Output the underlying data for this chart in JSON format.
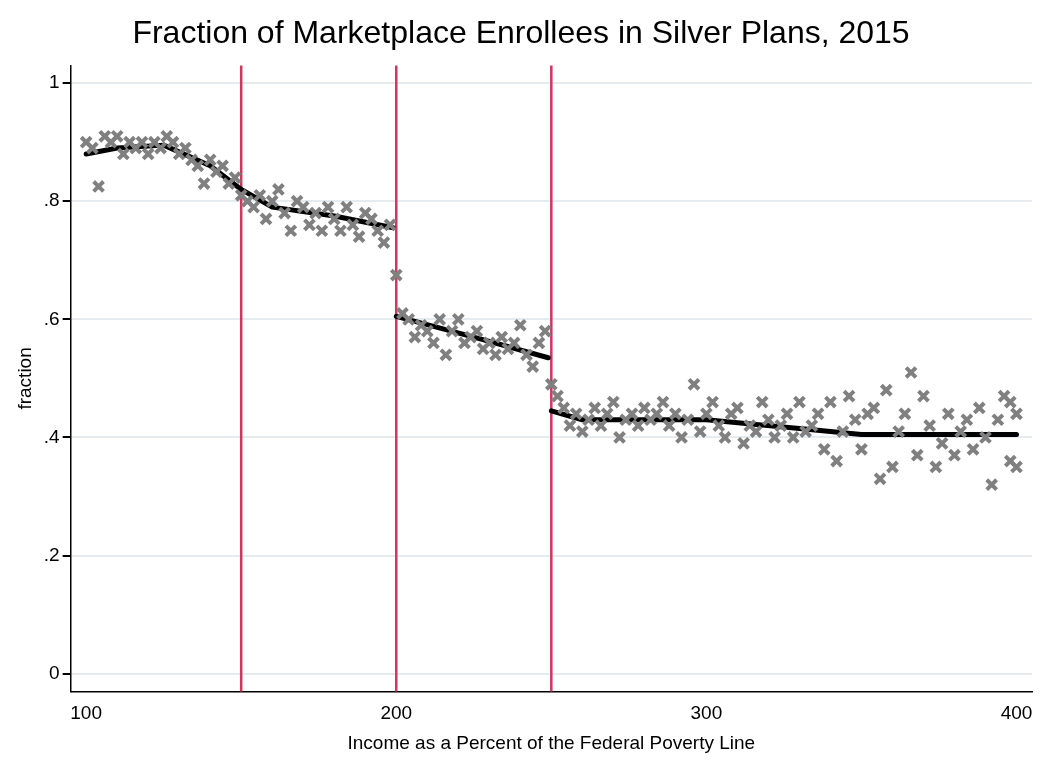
{
  "chart_data": {
    "type": "scatter",
    "title": "Fraction of Marketplace Enrollees in Silver Plans, 2015",
    "xlabel": "Income as a Percent of the Federal Poverty Line",
    "ylabel": "fraction",
    "xlim": [
      95,
      405
    ],
    "xticks": [
      100,
      200,
      300,
      400
    ],
    "ylim": [
      -0.03,
      1.03
    ],
    "yticks": [
      {
        "value": 0,
        "label": "0"
      },
      {
        "value": 0.2,
        "label": ".2"
      },
      {
        "value": 0.4,
        "label": ".4"
      },
      {
        "value": 0.6,
        "label": ".6"
      },
      {
        "value": 0.8,
        "label": ".8"
      },
      {
        "value": 1,
        "label": "1"
      }
    ],
    "grid": "y",
    "legend": false,
    "ref_lines": [
      {
        "axis": "x",
        "value": 150,
        "color": "#d1365e"
      },
      {
        "axis": "x",
        "value": 200,
        "color": "#d1365e"
      },
      {
        "axis": "x",
        "value": 250,
        "color": "#d1365e"
      }
    ],
    "series": [
      {
        "color": "#808080",
        "marker": "cross",
        "x": [
          100,
          102,
          104,
          106,
          108,
          110,
          112,
          114,
          116,
          118,
          120,
          122,
          124,
          126,
          128,
          130,
          132,
          134,
          136,
          138,
          140,
          142,
          144,
          146,
          148,
          150,
          152,
          154,
          156,
          158,
          160,
          162,
          164,
          166,
          168,
          170,
          172,
          174,
          176,
          178,
          180,
          182,
          184,
          186,
          188,
          190,
          192,
          194,
          196,
          198,
          200,
          202,
          204,
          206,
          208,
          210,
          212,
          214,
          216,
          218,
          220,
          222,
          224,
          226,
          228,
          230,
          232,
          234,
          236,
          238,
          240,
          242,
          244,
          246,
          248,
          250,
          252,
          254,
          256,
          258,
          260,
          262,
          264,
          266,
          268,
          270,
          272,
          274,
          276,
          278,
          280,
          282,
          284,
          286,
          288,
          290,
          292,
          294,
          296,
          298,
          300,
          302,
          304,
          306,
          308,
          310,
          312,
          314,
          316,
          318,
          320,
          322,
          324,
          326,
          328,
          330,
          332,
          334,
          336,
          338,
          340,
          342,
          344,
          346,
          348,
          350,
          352,
          354,
          356,
          358,
          360,
          362,
          364,
          366,
          368,
          370,
          372,
          374,
          376,
          378,
          380,
          382,
          384,
          386,
          388,
          390,
          392,
          394,
          396,
          398,
          400,
          398,
          400
        ],
        "values": [
          0.9,
          0.89,
          0.825,
          0.91,
          0.9,
          0.91,
          0.88,
          0.9,
          0.89,
          0.9,
          0.88,
          0.9,
          0.89,
          0.91,
          0.9,
          0.88,
          0.89,
          0.87,
          0.86,
          0.83,
          0.87,
          0.85,
          0.86,
          0.83,
          0.84,
          0.81,
          0.8,
          0.79,
          0.81,
          0.77,
          0.8,
          0.82,
          0.78,
          0.75,
          0.8,
          0.79,
          0.76,
          0.78,
          0.75,
          0.79,
          0.77,
          0.75,
          0.79,
          0.76,
          0.74,
          0.78,
          0.77,
          0.75,
          0.73,
          0.76,
          0.675,
          0.61,
          0.6,
          0.57,
          0.59,
          0.58,
          0.56,
          0.6,
          0.54,
          0.58,
          0.6,
          0.56,
          0.57,
          0.58,
          0.55,
          0.56,
          0.54,
          0.57,
          0.55,
          0.56,
          0.59,
          0.54,
          0.52,
          0.56,
          0.58,
          0.49,
          0.47,
          0.45,
          0.42,
          0.44,
          0.41,
          0.43,
          0.45,
          0.42,
          0.44,
          0.46,
          0.4,
          0.43,
          0.44,
          0.42,
          0.45,
          0.43,
          0.44,
          0.46,
          0.42,
          0.44,
          0.4,
          0.43,
          0.49,
          0.41,
          0.44,
          0.46,
          0.42,
          0.4,
          0.44,
          0.45,
          0.39,
          0.42,
          0.41,
          0.46,
          0.43,
          0.4,
          0.42,
          0.44,
          0.4,
          0.46,
          0.41,
          0.42,
          0.44,
          0.38,
          0.46,
          0.36,
          0.41,
          0.47,
          0.43,
          0.38,
          0.44,
          0.45,
          0.33,
          0.48,
          0.35,
          0.41,
          0.44,
          0.51,
          0.37,
          0.47,
          0.42,
          0.35,
          0.39,
          0.44,
          0.37,
          0.41,
          0.43,
          0.38,
          0.45,
          0.4,
          0.32,
          0.43,
          0.47,
          0.36,
          0.44,
          0.46,
          0.35
        ]
      },
      {
        "type": "line",
        "color": "#000000",
        "marker": "none",
        "x": [
          100,
          110,
          125,
          140,
          150,
          160,
          180,
          199,
          199.5,
          200,
          225,
          249,
          249.5,
          250,
          260,
          300,
          330,
          350,
          380,
          400
        ],
        "values": [
          0.88,
          0.89,
          0.895,
          0.86,
          0.82,
          0.79,
          0.775,
          0.755,
          null,
          0.605,
          0.57,
          0.535,
          null,
          0.445,
          0.43,
          0.43,
          0.415,
          0.405,
          0.405,
          0.405
        ]
      }
    ]
  }
}
